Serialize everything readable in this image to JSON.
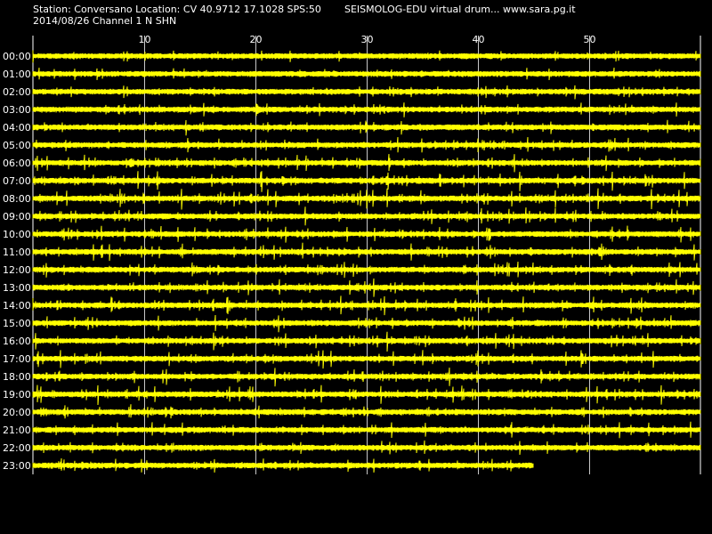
{
  "header": {
    "station_line": "Station: Conversano Location: CV 40.9712 17.1028 SPS:50",
    "date_line": "2014/08/26  Channel 1 N SHN",
    "app_line": "SEISMOLOG-EDU virtual drum... www.sara.pg.it"
  },
  "colors": {
    "background": "#000000",
    "trace": "#ffff00",
    "grid": "#ffffff",
    "text": "#ffffff"
  },
  "chart_data": {
    "type": "line",
    "title": "",
    "xlabel": "",
    "ylabel": "",
    "xlim": [
      0,
      60
    ],
    "x_ticks": [
      "10",
      "20",
      "30",
      "40",
      "50"
    ],
    "x_tick_values": [
      10,
      20,
      30,
      40,
      50
    ],
    "grid": true,
    "rows": [
      {
        "label": "00:00",
        "end_minute": 60,
        "activity": 0.35
      },
      {
        "label": "01:00",
        "end_minute": 60,
        "activity": 0.3
      },
      {
        "label": "02:00",
        "end_minute": 60,
        "activity": 0.4
      },
      {
        "label": "03:00",
        "end_minute": 60,
        "activity": 0.35
      },
      {
        "label": "04:00",
        "end_minute": 60,
        "activity": 0.45
      },
      {
        "label": "05:00",
        "end_minute": 60,
        "activity": 0.5
      },
      {
        "label": "06:00",
        "end_minute": 60,
        "activity": 0.75
      },
      {
        "label": "07:00",
        "end_minute": 60,
        "activity": 0.9
      },
      {
        "label": "08:00",
        "end_minute": 60,
        "activity": 0.9
      },
      {
        "label": "09:00",
        "end_minute": 60,
        "activity": 0.8
      },
      {
        "label": "10:00",
        "end_minute": 60,
        "activity": 0.65
      },
      {
        "label": "11:00",
        "end_minute": 60,
        "activity": 0.8
      },
      {
        "label": "12:00",
        "end_minute": 60,
        "activity": 0.55
      },
      {
        "label": "13:00",
        "end_minute": 60,
        "activity": 0.75
      },
      {
        "label": "14:00",
        "end_minute": 60,
        "activity": 0.8
      },
      {
        "label": "15:00",
        "end_minute": 60,
        "activity": 0.6
      },
      {
        "label": "16:00",
        "end_minute": 60,
        "activity": 0.75
      },
      {
        "label": "17:00",
        "end_minute": 60,
        "activity": 0.7
      },
      {
        "label": "18:00",
        "end_minute": 60,
        "activity": 0.85
      },
      {
        "label": "19:00",
        "end_minute": 60,
        "activity": 0.85
      },
      {
        "label": "20:00",
        "end_minute": 60,
        "activity": 0.6
      },
      {
        "label": "21:00",
        "end_minute": 60,
        "activity": 0.55
      },
      {
        "label": "22:00",
        "end_minute": 60,
        "activity": 0.45
      },
      {
        "label": "23:00",
        "end_minute": 45,
        "activity": 0.45
      }
    ]
  }
}
